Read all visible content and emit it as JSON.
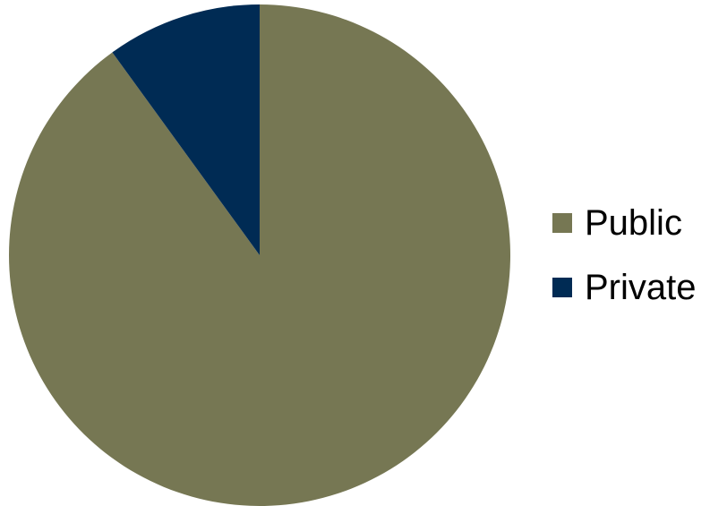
{
  "chart_data": {
    "type": "pie",
    "title": "",
    "categories": [
      "Public",
      "Private"
    ],
    "values": [
      90,
      10
    ],
    "colors": [
      "#767753",
      "#002b54"
    ],
    "start_angle_deg": 0,
    "direction": "clockwise",
    "legend_position": "right"
  }
}
